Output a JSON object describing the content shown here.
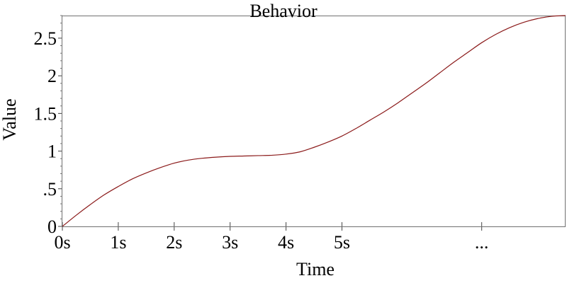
{
  "chart_data": {
    "type": "line",
    "title": "Behavior",
    "xlabel": "Time",
    "ylabel": "Value",
    "xlim": [
      0,
      9
    ],
    "ylim": [
      0,
      2.8
    ],
    "x_ticks": [
      {
        "value": 0,
        "label": "0s"
      },
      {
        "value": 1,
        "label": "1s"
      },
      {
        "value": 2,
        "label": "2s"
      },
      {
        "value": 3,
        "label": "3s"
      },
      {
        "value": 4,
        "label": "4s"
      },
      {
        "value": 5,
        "label": "5s"
      },
      {
        "value": 7.5,
        "label": "..."
      }
    ],
    "y_ticks": [
      {
        "value": 0,
        "label": "0"
      },
      {
        "value": 0.5,
        "label": ".5"
      },
      {
        "value": 1,
        "label": "1"
      },
      {
        "value": 1.5,
        "label": "1.5"
      },
      {
        "value": 2,
        "label": "2"
      },
      {
        "value": 2.5,
        "label": "2.5"
      }
    ],
    "grid": false,
    "series": [
      {
        "color": "#8b1a1a",
        "x": [
          0,
          0.25,
          0.5,
          0.75,
          1,
          1.25,
          1.5,
          1.75,
          2,
          2.25,
          2.5,
          2.75,
          3,
          3.25,
          3.5,
          3.75,
          4,
          4.25,
          4.5,
          4.75,
          5,
          5.25,
          5.5,
          5.75,
          6,
          6.25,
          6.5,
          6.75,
          7,
          7.25,
          7.5,
          7.75,
          8,
          8.25,
          8.5,
          8.75,
          9
        ],
        "y": [
          0,
          0.15,
          0.29,
          0.42,
          0.53,
          0.63,
          0.71,
          0.78,
          0.84,
          0.88,
          0.905,
          0.92,
          0.93,
          0.935,
          0.94,
          0.945,
          0.96,
          0.99,
          1.05,
          1.12,
          1.2,
          1.3,
          1.41,
          1.52,
          1.64,
          1.77,
          1.9,
          2.04,
          2.18,
          2.31,
          2.44,
          2.55,
          2.64,
          2.71,
          2.76,
          2.79,
          2.8
        ]
      }
    ]
  }
}
